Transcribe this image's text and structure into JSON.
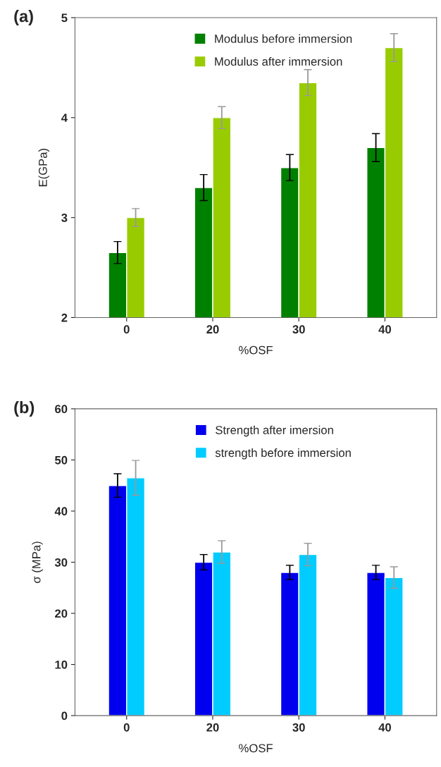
{
  "chart_data": [
    {
      "type": "bar",
      "title": "(a)",
      "xlabel": "%OSF",
      "ylabel": "E(GPa)",
      "categories": [
        "0",
        "20",
        "30",
        "40"
      ],
      "ylim": [
        2,
        5
      ],
      "yticks": [
        2,
        3,
        4,
        5
      ],
      "legend": "top",
      "grid": false,
      "series": [
        {
          "name": "Modulus before immersion",
          "color": "#008000",
          "values": [
            2.65,
            3.3,
            3.5,
            3.7
          ],
          "errors": [
            0.11,
            0.13,
            0.13,
            0.14
          ]
        },
        {
          "name": "Modulus after immersion",
          "color": "#99cc00",
          "values": [
            3.0,
            4.0,
            4.35,
            4.7
          ],
          "errors": [
            0.09,
            0.11,
            0.13,
            0.14
          ]
        }
      ]
    },
    {
      "type": "bar",
      "title": "(b)",
      "xlabel": "%OSF",
      "ylabel": "σ (MPa)",
      "categories": [
        "0",
        "20",
        "30",
        "40"
      ],
      "ylim": [
        0,
        60
      ],
      "yticks": [
        0,
        10,
        20,
        30,
        40,
        50,
        60
      ],
      "legend": "top",
      "grid": false,
      "series": [
        {
          "name": "Strength after imersion",
          "color": "#0000ee",
          "values": [
            45,
            30,
            28,
            28
          ],
          "errors": [
            2.3,
            1.5,
            1.4,
            1.4
          ]
        },
        {
          "name": "strength before immersion",
          "color": "#00ccff",
          "values": [
            46.5,
            32,
            31.5,
            27
          ],
          "errors": [
            3.4,
            2.2,
            2.2,
            2.1
          ]
        }
      ]
    }
  ]
}
